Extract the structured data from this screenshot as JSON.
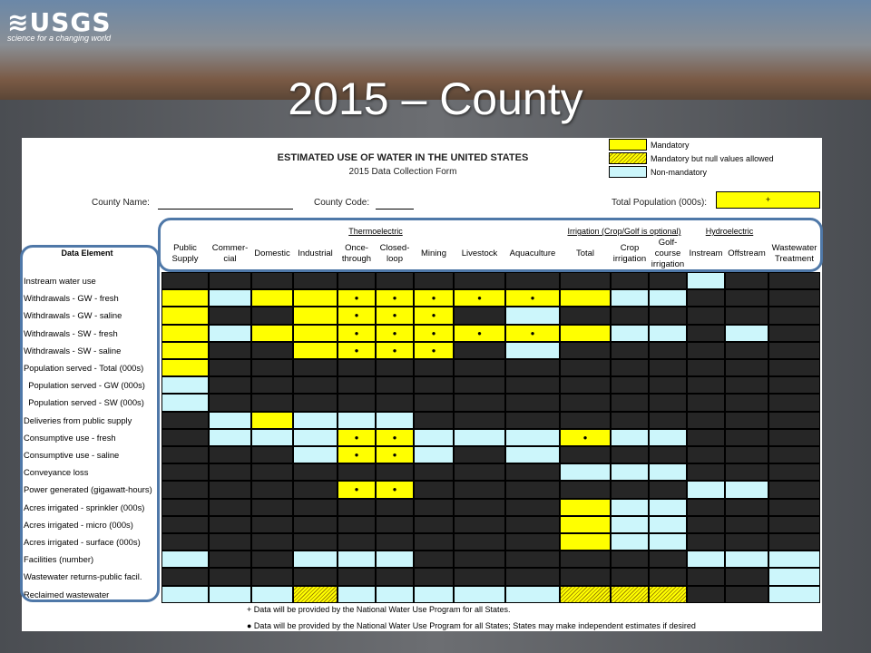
{
  "logo": {
    "mark": "≋USGS",
    "tagline": "science for a changing world"
  },
  "slide_title": "2015 – County",
  "form": {
    "title": "ESTIMATED USE OF WATER IN THE UNITED STATES",
    "subtitle": "2015 Data Collection Form",
    "county_name_label": "County Name:",
    "county_code_label": "County Code:",
    "total_pop_label": "Total Population (000s):",
    "total_pop_value": "+",
    "data_element_header": "Data Element"
  },
  "legend": [
    {
      "label": "Mandatory",
      "color": "#ffff00"
    },
    {
      "label": "Mandatory but null values allowed",
      "color": "hatched"
    },
    {
      "label": "Non-mandatory",
      "color": "#ccf6fb"
    }
  ],
  "groups": {
    "thermoelectric": "Thermoelectric",
    "irrigation": "Irrigation (Crop/Golf is optional)",
    "hydroelectric": "Hydroelectric"
  },
  "columns": [
    "Public Supply",
    "Commer-cial",
    "Domestic",
    "Industrial",
    "Once-through",
    "Closed-loop",
    "Mining",
    "Livestock",
    "Aquaculture",
    "Total",
    "Crop irrigation",
    "Golf-course irrigation",
    "Instream",
    "Offstream",
    "Wastewater Treatment"
  ],
  "rows": [
    {
      "label": "Instream water use",
      "cells": "kkkkkkkkkkkkbkk"
    },
    {
      "label": "Withdrawals - GW - fresh",
      "cells": "ybyyYYYYYybbkkk"
    },
    {
      "label": "Withdrawals - GW - saline",
      "cells": "ykkyYYYkbkkkkkk"
    },
    {
      "label": "Withdrawals - SW - fresh",
      "cells": "ybyyYYYYYybbkbk"
    },
    {
      "label": "Withdrawals - SW - saline",
      "cells": "ykkyYYYkbkkkkkk"
    },
    {
      "label": "Population served - Total (000s)",
      "cells": "ykkkkkkkkkkkkkk"
    },
    {
      "label": "  Population served - GW (000s)",
      "cells": "bkkkkkkkkkkkkkk"
    },
    {
      "label": "  Population served - SW (000s)",
      "cells": "bkkkkkkkkkkkkkk"
    },
    {
      "label": "Deliveries from public supply",
      "cells": "kbybbbkkkkkkkkk"
    },
    {
      "label": "Consumptive use - fresh",
      "cells": "kbbbYYbbbYbbkkk"
    },
    {
      "label": "Consumptive use - saline",
      "cells": "kkkbYYbkbkkkkkk"
    },
    {
      "label": "Conveyance loss",
      "cells": "kkkkkkkkkbbbkkk"
    },
    {
      "label": "Power generated (gigawatt-hours)",
      "cells": "kkkkYYkkkkkkbbk"
    },
    {
      "label": "Acres irrigated - sprinkler (000s)",
      "cells": "kkkkkkkkkybbkkk"
    },
    {
      "label": "Acres irrigated - micro (000s)",
      "cells": "kkkkkkkkkybbkkk"
    },
    {
      "label": "Acres irrigated - surface (000s)",
      "cells": "kkkkkkkkkybbkkk"
    },
    {
      "label": "Facilities (number)",
      "cells": "bkkbbbkkkkkkbbb"
    },
    {
      "label": "Wastewater returns-public facil.",
      "cells": "kkkkkkkkkkkkkkb"
    },
    {
      "label": "Reclaimed wastewater",
      "cells": "bbbhbbbbbhhhkkb"
    }
  ],
  "notes": [
    "+   Data will be provided by the National Water Use Program for all States.",
    "●   Data will be provided by the National Water Use Program for all States; States may make independent estimates if desired"
  ],
  "colors": {
    "mandatory": "#ffff00",
    "non_mandatory": "#ccf6fb",
    "not_applicable": "#262626",
    "callout": "#4f78a8"
  }
}
